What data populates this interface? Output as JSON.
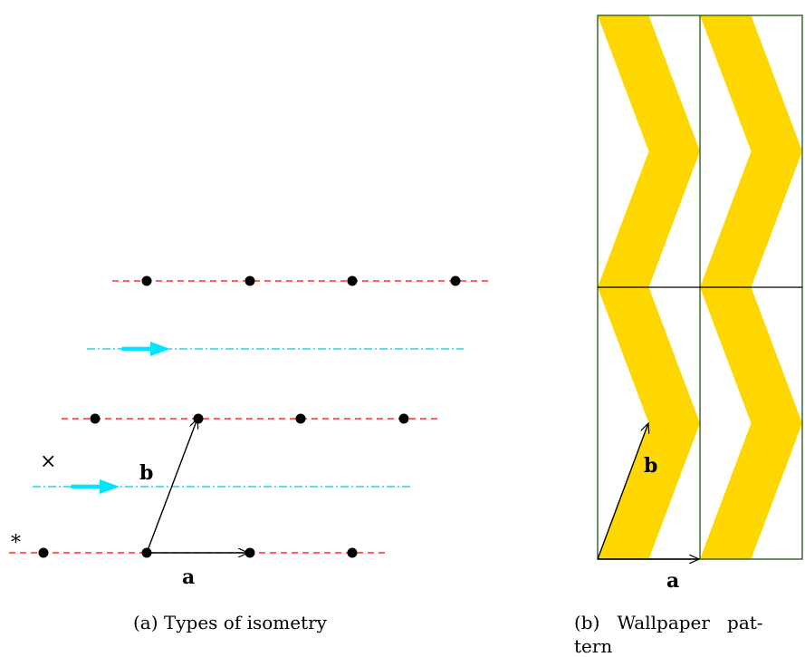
{
  "colors": {
    "mirror_line": "#ff0000",
    "glide_line": "#00c8d8",
    "glide_arrow": "#00e5ff",
    "lattice_point": "#000000",
    "vector": "#000000",
    "pattern_fill": "#ffd700",
    "cell_border": "#2e5e1e"
  },
  "left_panel": {
    "caption": "(a) Types of isometry",
    "vector_a_label": "a",
    "vector_b_label": "b",
    "mirror_symbol": "*",
    "glide_symbol": "×"
  },
  "right_panel": {
    "caption_line1": "(b)   Wallpaper   pat-",
    "caption_line2": "tern",
    "vector_a_label": "a",
    "vector_b_label": "b"
  }
}
